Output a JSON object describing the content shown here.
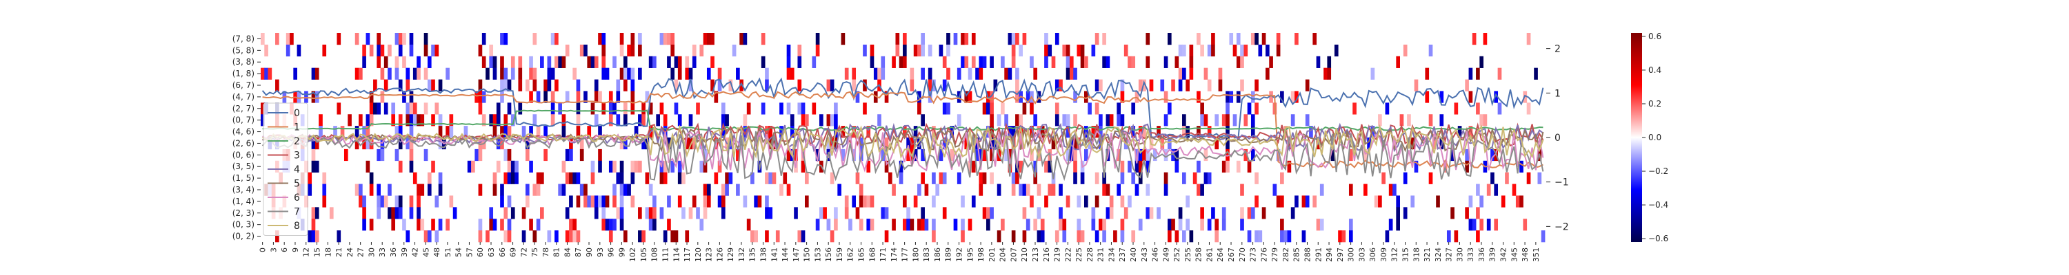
{
  "figure": {
    "background": "#ffffff"
  },
  "chart_data": {
    "type": "heatmap",
    "title": "",
    "xlabel": "",
    "ylabel": "",
    "heatmap": {
      "row_labels": [
        "(7, 8)",
        "(5, 8)",
        "(3, 8)",
        "(1, 8)",
        "(6, 7)",
        "(4, 7)",
        "(2, 7)",
        "(0, 7)",
        "(4, 6)",
        "(2, 6)",
        "(0, 6)",
        "(3, 5)",
        "(1, 5)",
        "(3, 4)",
        "(1, 4)",
        "(2, 3)",
        "(0, 3)",
        "(0, 2)"
      ],
      "n_columns": 354,
      "x_tick_step": 3,
      "x_tick_labels": [
        "0",
        "3",
        "6",
        "9",
        "12",
        "15",
        "18",
        "21",
        "24",
        "27",
        "30",
        "33",
        "36",
        "39",
        "42",
        "45",
        "48",
        "51",
        "54",
        "57",
        "60",
        "63",
        "66",
        "69",
        "72",
        "75",
        "78",
        "81",
        "84",
        "87",
        "90",
        "93",
        "96",
        "99",
        "102",
        "105",
        "108",
        "111",
        "114",
        "117",
        "120",
        "123",
        "126",
        "129",
        "132",
        "135",
        "138",
        "141",
        "144",
        "147",
        "150",
        "153",
        "156",
        "159",
        "162",
        "165",
        "168",
        "171",
        "174",
        "177",
        "180",
        "183",
        "186",
        "189",
        "192",
        "195",
        "198",
        "201",
        "204",
        "207",
        "210",
        "213",
        "216",
        "219",
        "222",
        "225",
        "228",
        "231",
        "234",
        "237",
        "240",
        "243",
        "246",
        "249",
        "252",
        "255",
        "258",
        "261",
        "264",
        "267",
        "270",
        "273",
        "276",
        "279",
        "282",
        "285",
        "288",
        "291",
        "294",
        "297",
        "300",
        "303",
        "306",
        "309",
        "312",
        "315",
        "318",
        "321",
        "324",
        "327",
        "330",
        "333",
        "336",
        "339",
        "342",
        "345",
        "348",
        "351"
      ],
      "value_range": [
        -0.6,
        0.6
      ],
      "colormap": "seismic",
      "density_by_column_range": [
        {
          "from": 0,
          "to": 18,
          "density": 0.22
        },
        {
          "from": 18,
          "to": 26,
          "density": 0.06
        },
        {
          "from": 26,
          "to": 50,
          "density": 0.28
        },
        {
          "from": 50,
          "to": 60,
          "density": 0.08
        },
        {
          "from": 60,
          "to": 76,
          "density": 0.3
        },
        {
          "from": 76,
          "to": 84,
          "density": 0.22
        },
        {
          "from": 84,
          "to": 108,
          "density": 0.28
        },
        {
          "from": 108,
          "to": 170,
          "density": 0.2
        },
        {
          "from": 170,
          "to": 200,
          "density": 0.22
        },
        {
          "from": 200,
          "to": 245,
          "density": 0.26
        },
        {
          "from": 245,
          "to": 283,
          "density": 0.2
        },
        {
          "from": 283,
          "to": 354,
          "density": 0.1
        }
      ]
    },
    "colorbar": {
      "ticks": [
        "0.6",
        "0.4",
        "0.2",
        "0.0",
        "−0.2",
        "−0.4",
        "−0.6"
      ],
      "tick_values": [
        0.6,
        0.4,
        0.2,
        0.0,
        -0.2,
        -0.4,
        -0.6
      ],
      "range": [
        -0.62,
        0.62
      ]
    },
    "line_axis": {
      "ticks": [
        "2",
        "1",
        "0",
        "−1",
        "−2"
      ],
      "tick_values": [
        2,
        1,
        0,
        -1,
        -2
      ],
      "ylim": [
        -2.35,
        2.35
      ]
    },
    "legend": {
      "placement": "lower-left",
      "entries": [
        "0",
        "1",
        "2",
        "3",
        "4",
        "5",
        "6",
        "7",
        "8"
      ]
    },
    "series": [
      {
        "name": "0",
        "color": "#4c72b0",
        "noise": 0.22,
        "segments": [
          [
            0,
            22,
            1.0
          ],
          [
            22,
            70,
            1.05
          ],
          [
            70,
            107,
            0.3
          ],
          [
            107,
            245,
            1.1
          ],
          [
            245,
            270,
            0.05
          ],
          [
            270,
            354,
            0.9
          ]
        ]
      },
      {
        "name": "1",
        "color": "#dd8452",
        "noise": 0.08,
        "segments": [
          [
            0,
            30,
            0.9
          ],
          [
            30,
            70,
            0.95
          ],
          [
            70,
            107,
            0.8
          ],
          [
            107,
            178,
            0.95
          ],
          [
            178,
            245,
            0.85
          ],
          [
            245,
            262,
            0.85
          ],
          [
            262,
            280,
            0.95
          ],
          [
            280,
            354,
            -0.6
          ]
        ]
      },
      {
        "name": "2",
        "color": "#55a868",
        "noise": 0.04,
        "segments": [
          [
            0,
            30,
            0.2
          ],
          [
            30,
            70,
            0.3
          ],
          [
            70,
            107,
            0.6
          ],
          [
            107,
            354,
            0.2
          ]
        ]
      },
      {
        "name": "3",
        "color": "#c44e52",
        "noise": 0.25,
        "segments": [
          [
            0,
            107,
            0.0
          ],
          [
            107,
            354,
            0.05
          ]
        ]
      },
      {
        "name": "4",
        "color": "#8172b3",
        "noise": 0.3,
        "segments": [
          [
            0,
            107,
            -0.05
          ],
          [
            107,
            354,
            0.0
          ]
        ]
      },
      {
        "name": "5",
        "color": "#937860",
        "noise": 0.25,
        "segments": [
          [
            0,
            107,
            0.0
          ],
          [
            107,
            354,
            -0.05
          ]
        ]
      },
      {
        "name": "6",
        "color": "#da8bc3",
        "noise": 0.45,
        "segments": [
          [
            0,
            107,
            -0.05
          ],
          [
            107,
            354,
            -0.3
          ]
        ]
      },
      {
        "name": "7",
        "color": "#8c8c8c",
        "noise": 0.55,
        "segments": [
          [
            0,
            107,
            -0.1
          ],
          [
            107,
            354,
            -0.4
          ]
        ]
      },
      {
        "name": "8",
        "color": "#ccb974",
        "noise": 0.35,
        "segments": [
          [
            0,
            107,
            0.0
          ],
          [
            107,
            354,
            -0.1
          ]
        ]
      }
    ]
  }
}
